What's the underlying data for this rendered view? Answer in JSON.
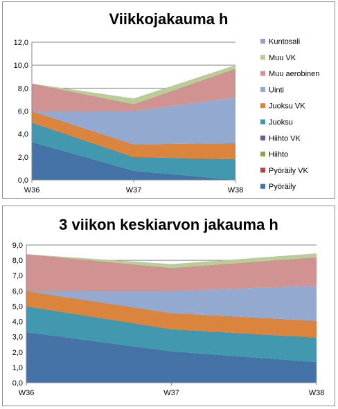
{
  "chart_data": [
    {
      "type": "area",
      "stacked": true,
      "title": "Viikkojakauma h",
      "categories": [
        "W36",
        "W37",
        "W38"
      ],
      "ylim": [
        0,
        12
      ],
      "yticks": [
        "0,0",
        "2,0",
        "4,0",
        "6,0",
        "8,0",
        "10,0",
        "12,0"
      ],
      "grid": true,
      "legend_position": "right",
      "series": [
        {
          "name": "Pyöräily",
          "color": "#4572A7",
          "values": [
            3.3,
            0.8,
            0.0
          ]
        },
        {
          "name": "Pyöräily VK",
          "color": "#AA4643",
          "values": [
            0,
            0,
            0
          ]
        },
        {
          "name": "Hiihto",
          "color": "#89A54E",
          "values": [
            0,
            0,
            0
          ]
        },
        {
          "name": "Hiihto VK",
          "color": "#71588F",
          "values": [
            0,
            0,
            0
          ]
        },
        {
          "name": "Juoksu",
          "color": "#4198AF",
          "values": [
            1.7,
            1.2,
            1.8
          ]
        },
        {
          "name": "Juoksu VK",
          "color": "#DB843D",
          "values": [
            1.0,
            1.1,
            1.4
          ]
        },
        {
          "name": "Uinti",
          "color": "#93A9CF",
          "values": [
            0.0,
            2.9,
            4.0
          ]
        },
        {
          "name": "Muu aerobinen",
          "color": "#D19392",
          "values": [
            2.4,
            0.6,
            2.5
          ]
        },
        {
          "name": "Muu VK",
          "color": "#B9CD96",
          "values": [
            0.0,
            0.5,
            0.3
          ]
        },
        {
          "name": "Kuntosali",
          "color": "#A99BBD",
          "values": [
            0,
            0,
            0
          ]
        }
      ]
    },
    {
      "type": "area",
      "stacked": true,
      "title": "3 viikon keskiarvon jakauma h",
      "categories": [
        "W36",
        "W37",
        "W38"
      ],
      "ylim": [
        0,
        9
      ],
      "yticks": [
        "0,0",
        "1,0",
        "2,0",
        "3,0",
        "4,0",
        "5,0",
        "6,0",
        "7,0",
        "8,0",
        "9,0"
      ],
      "grid": true,
      "series": [
        {
          "name": "Pyöräily",
          "color": "#4572A7",
          "values": [
            3.3,
            2.05,
            1.35
          ]
        },
        {
          "name": "Juoksu",
          "color": "#4198AF",
          "values": [
            1.7,
            1.45,
            1.6
          ]
        },
        {
          "name": "Juoksu VK",
          "color": "#DB843D",
          "values": [
            1.0,
            1.05,
            1.1
          ]
        },
        {
          "name": "Uinti",
          "color": "#93A9CF",
          "values": [
            0.0,
            1.45,
            2.3
          ]
        },
        {
          "name": "Muu aerobinen",
          "color": "#D19392",
          "values": [
            2.4,
            1.5,
            1.85
          ]
        },
        {
          "name": "Muu VK",
          "color": "#B9CD96",
          "values": [
            0.0,
            0.25,
            0.25
          ]
        }
      ]
    }
  ]
}
